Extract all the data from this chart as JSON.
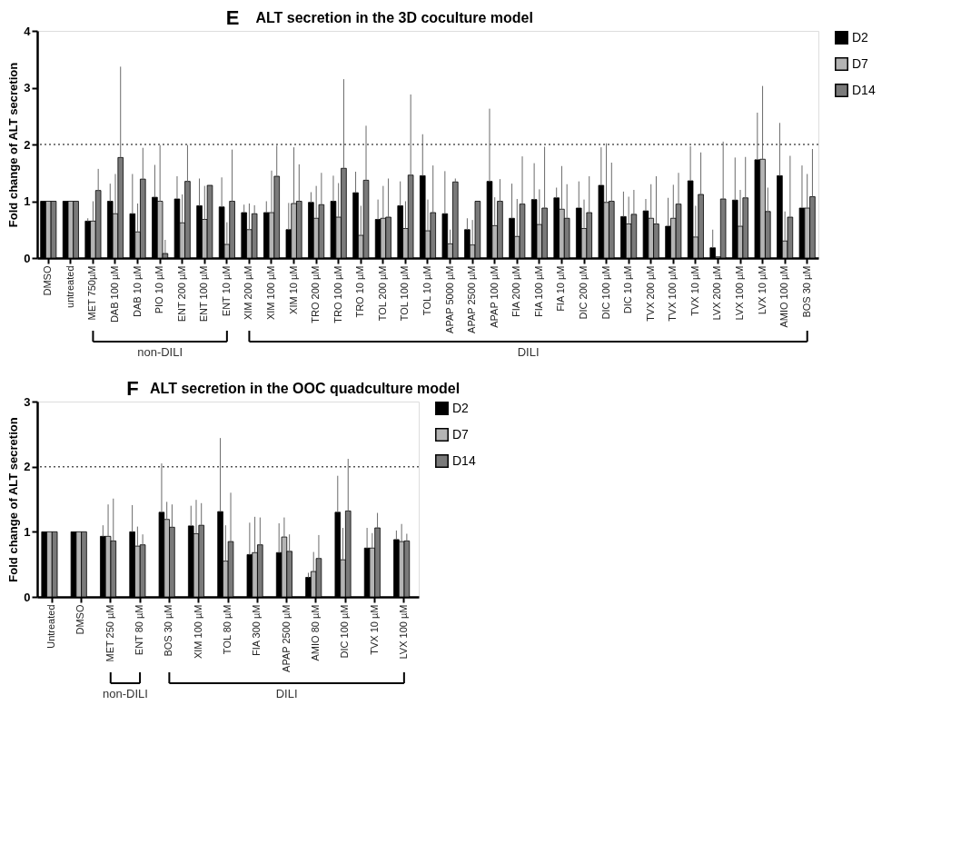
{
  "chart_data": [
    {
      "type": "bar",
      "title": "ALT secretion in the 3D coculture model",
      "ylabel": "Fold change of ALT secretion",
      "annotations": [
        "E",
        "non-DILI",
        "DILI"
      ],
      "categories": [
        "DMSO",
        "untreated",
        "MET 750µM",
        "DAB 100 µM",
        "DAB 10 µM",
        "PIO 10 µM",
        "ENT 200 µM",
        "ENT 100 µM",
        "ENT 10 µM",
        "XIM 200 µM",
        "XIM 100 µM",
        "XIM 10 µM",
        "TRO 200 µM",
        "TRO 100 µM",
        "TRO 10 µM",
        "TOL 200 µM",
        "TOL 100 µM",
        "TOL 10 µM",
        "APAP 5000 µM",
        "APAP 2500 µM",
        "APAP 100 µM",
        "FIA 200 µM",
        "FIA 100 µM",
        "FIA 10 µM",
        "DIC 200 µM",
        "DIC 100 µM",
        "DIC 10 µM",
        "TVX 200 µM",
        "TVX 100 µM",
        "TVX 10 µM",
        "LVX 200 µM",
        "LVX 100 µM",
        "LVX 10 µM",
        "AMIO 100 µM",
        "BOS 30 µM"
      ],
      "series": [
        {
          "name": "D2",
          "color": "#000000",
          "values": [
            1,
            1,
            0.65,
            1.0,
            0.78,
            1.07,
            1.04,
            0.92,
            0.9,
            0.8,
            0.8,
            0.5,
            0.98,
            1.0,
            1.15,
            0.68,
            0.92,
            1.45,
            0.78,
            0.5,
            1.35,
            0.7,
            1.03,
            1.06,
            0.88,
            1.28,
            0.73,
            0.83,
            0.56,
            1.36,
            0.18,
            1.02,
            1.73,
            1.45,
            0.88
          ],
          "errors": [
            null,
            null,
            [
              0.65,
              0.7
            ],
            [
              1.0,
              1.31
            ],
            [
              0.78,
              1.48
            ],
            [
              1.07,
              1.64
            ],
            [
              1.04,
              1.44
            ],
            [
              0.92,
              1.4
            ],
            [
              0.9,
              1.42
            ],
            [
              0.8,
              0.94
            ],
            [
              0.8,
              1.0
            ],
            [
              0.5,
              0.97
            ],
            [
              0.98,
              1.16
            ],
            [
              1.0,
              1.45
            ],
            [
              1.15,
              1.52
            ],
            [
              0.68,
              1.03
            ],
            [
              0.92,
              1.35
            ],
            [
              1.45,
              2.18
            ],
            [
              0.78,
              1.53
            ],
            [
              0.5,
              0.7
            ],
            [
              1.35,
              2.63
            ],
            [
              0.7,
              1.31
            ],
            [
              1.03,
              1.67
            ],
            [
              1.06,
              1.24
            ],
            [
              0.88,
              1.35
            ],
            [
              1.28,
              1.95
            ],
            [
              0.73,
              1.17
            ],
            [
              0.83,
              1.04
            ],
            [
              0.56,
              1.06
            ],
            [
              1.36,
              1.97
            ],
            [
              0.18,
              0.5
            ],
            [
              1.02,
              1.77
            ],
            [
              1.73,
              2.56
            ],
            [
              1.45,
              2.38
            ],
            [
              0.88,
              1.63
            ]
          ]
        },
        {
          "name": "D7",
          "color": "#b4b4b4",
          "values": [
            1,
            1,
            0.65,
            0.78,
            0.46,
            1.0,
            0.62,
            0.68,
            0.24,
            0.5,
            0.8,
            0.96,
            0.7,
            0.72,
            0.4,
            0.7,
            0.52,
            0.48,
            0.25,
            0.23,
            0.57,
            0.38,
            0.59,
            0.86,
            0.52,
            0.98,
            0.6,
            0.7,
            0.7,
            0.37,
            0.02,
            0.56,
            1.74,
            0.3,
            0.88
          ],
          "errors": [
            null,
            null,
            [
              0.65,
              1.0
            ],
            [
              0.78,
              1.48
            ],
            [
              0.46,
              0.96
            ],
            [
              1.0,
              1.99
            ],
            [
              0.62,
              1.12
            ],
            [
              0.68,
              1.27
            ],
            [
              0.24,
              0.63
            ],
            [
              0.5,
              0.96
            ],
            [
              0.8,
              1.54
            ],
            [
              0.96,
              1.95
            ],
            [
              0.7,
              1.27
            ],
            [
              0.72,
              1.32
            ],
            [
              0.4,
              0.92
            ],
            [
              0.7,
              1.27
            ],
            [
              0.52,
              1.0
            ],
            [
              0.48,
              1.03
            ],
            [
              0.25,
              0.5
            ],
            [
              0.23,
              0.67
            ],
            [
              0.57,
              1.07
            ],
            [
              0.38,
              1.04
            ],
            [
              0.59,
              1.21
            ],
            [
              0.86,
              1.62
            ],
            [
              0.52,
              1.03
            ],
            [
              0.98,
              2.02
            ],
            [
              0.6,
              1.08
            ],
            [
              0.7,
              1.3
            ],
            [
              0.7,
              1.29
            ],
            [
              0.37,
              0.92
            ],
            null,
            [
              0.56,
              1.2
            ],
            [
              1.74,
              3.03
            ],
            [
              0.3,
              0.82
            ],
            [
              0.88,
              1.48
            ]
          ]
        },
        {
          "name": "D14",
          "color": "#7a7a7a",
          "values": [
            1,
            1,
            1.19,
            1.77,
            1.39,
            0.08,
            1.35,
            1.28,
            1.0,
            0.78,
            1.44,
            1.0,
            0.94,
            1.58,
            1.37,
            0.72,
            1.46,
            0.8,
            1.34,
            1.0,
            1.0,
            0.95,
            0.88,
            0.7,
            0.8,
            1.0,
            0.77,
            0.6,
            0.95,
            1.12,
            1.04,
            1.06,
            0.82,
            0.72,
            1.08
          ],
          "errors": [
            null,
            null,
            [
              1.19,
              1.57
            ],
            [
              1.77,
              3.37
            ],
            [
              1.39,
              1.94
            ],
            [
              0.08,
              0.32
            ],
            [
              1.35,
              1.99
            ],
            null,
            [
              1.0,
              1.91
            ],
            [
              0.78,
              0.93
            ],
            [
              1.44,
              1.98
            ],
            [
              1.0,
              1.65
            ],
            [
              0.94,
              1.5
            ],
            [
              1.58,
              3.15
            ],
            [
              1.37,
              2.33
            ],
            [
              0.72,
              1.4
            ],
            [
              1.46,
              2.88
            ],
            [
              0.8,
              1.63
            ],
            [
              1.34,
              1.4
            ],
            null,
            [
              1.0,
              1.39
            ],
            [
              0.95,
              1.79
            ],
            [
              0.88,
              1.96
            ],
            [
              0.7,
              1.3
            ],
            [
              0.8,
              1.44
            ],
            [
              1.0,
              1.68
            ],
            [
              0.77,
              1.2
            ],
            [
              0.6,
              1.44
            ],
            [
              0.95,
              1.5
            ],
            [
              1.12,
              1.86
            ],
            [
              1.04,
              2.05
            ],
            [
              1.06,
              1.78
            ],
            [
              0.82,
              1.24
            ],
            [
              0.72,
              1.8
            ],
            [
              1.08,
              1.92
            ]
          ]
        }
      ],
      "ylim": [
        0,
        4
      ],
      "yticks": [
        0,
        1,
        2,
        3,
        4
      ],
      "ref_lines": [
        {
          "axis": "y",
          "value": 2,
          "line_style": "dotted",
          "color": "#555555"
        }
      ],
      "legend": "top right"
    },
    {
      "type": "bar",
      "title": "ALT secretion in the OOC quadculture model",
      "ylabel": "Fold change of ALT secretion",
      "annotations": [
        "F",
        "non-DILI",
        "DILI"
      ],
      "categories": [
        "Untreated",
        "DMSO",
        "MET 250 µM",
        "ENT 80 µM",
        "BOS 30 µM",
        "XIM 100 µM",
        "TOL 80 µM",
        "FIA 300 µM",
        "APAP 2500 µM",
        "AMIO 80 µM",
        "DIC 100 µM",
        "TVX 10 µM",
        "LVX 100 µM"
      ],
      "series": [
        {
          "name": "D2",
          "color": "#000000",
          "values": [
            1,
            1,
            0.93,
            1.0,
            1.3,
            1.09,
            1.31,
            0.65,
            0.68,
            0.3,
            1.3,
            0.75,
            0.88
          ],
          "errors": [
            null,
            null,
            [
              0.93,
              1.1
            ],
            [
              1.0,
              1.41
            ],
            [
              1.3,
              2.05
            ],
            [
              1.09,
              1.4
            ],
            [
              1.31,
              2.44
            ],
            [
              0.65,
              1.14
            ],
            [
              0.68,
              1.13
            ],
            [
              0.3,
              0.37
            ],
            [
              1.3,
              1.86
            ],
            [
              0.75,
              1.06
            ],
            [
              0.88,
              1.02
            ]
          ]
        },
        {
          "name": "D7",
          "color": "#b4b4b4",
          "values": [
            1,
            1,
            0.93,
            0.78,
            1.19,
            0.97,
            0.55,
            0.68,
            0.92,
            0.39,
            0.57,
            0.75,
            0.85
          ],
          "errors": [
            null,
            null,
            [
              0.93,
              1.42
            ],
            [
              0.78,
              1.08
            ],
            [
              1.19,
              1.46
            ],
            [
              0.97,
              1.49
            ],
            [
              0.55,
              1.1
            ],
            [
              0.68,
              1.23
            ],
            [
              0.92,
              1.22
            ],
            [
              0.39,
              0.69
            ],
            [
              0.57,
              1.06
            ],
            [
              0.75,
              0.98
            ],
            [
              0.85,
              1.12
            ]
          ]
        },
        {
          "name": "D14",
          "color": "#7a7a7a",
          "values": [
            1,
            1,
            0.86,
            0.8,
            1.07,
            1.1,
            0.85,
            0.8,
            0.7,
            0.59,
            1.32,
            1.06,
            0.86
          ],
          "errors": [
            null,
            null,
            [
              0.86,
              1.51
            ],
            [
              0.8,
              0.96
            ],
            [
              1.07,
              1.42
            ],
            [
              1.1,
              1.44
            ],
            [
              0.85,
              1.6
            ],
            [
              0.8,
              1.22
            ],
            [
              0.7,
              0.96
            ],
            [
              0.59,
              0.95
            ],
            [
              1.32,
              2.12
            ],
            [
              1.06,
              1.29
            ],
            [
              0.86,
              0.97
            ]
          ]
        }
      ],
      "ylim": [
        0,
        3
      ],
      "yticks": [
        0,
        1,
        2,
        3
      ],
      "ref_lines": [
        {
          "axis": "y",
          "value": 2,
          "line_style": "dotted",
          "color": "#555555"
        }
      ],
      "legend": "top right"
    }
  ]
}
